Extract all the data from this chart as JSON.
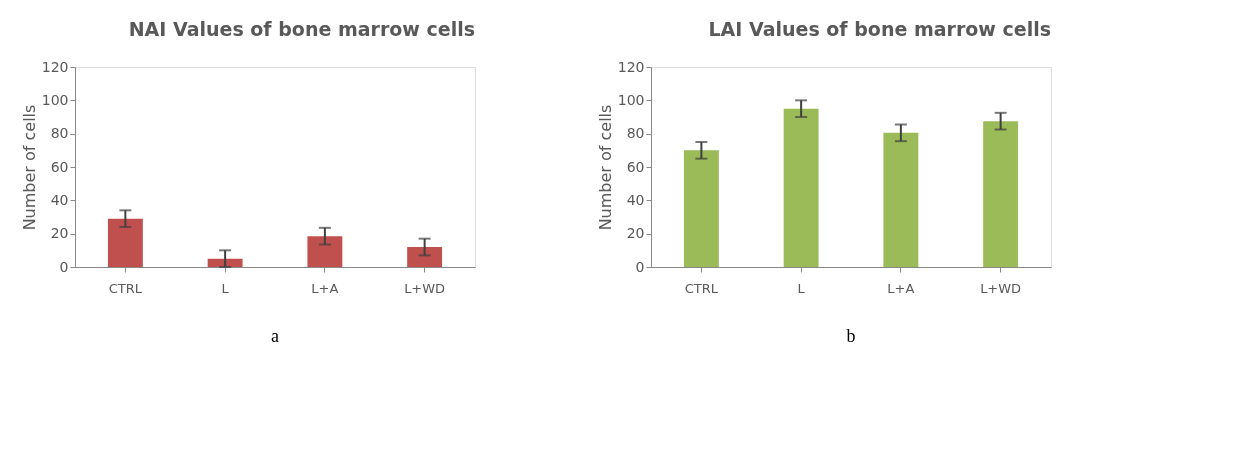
{
  "chart_data": [
    {
      "type": "bar",
      "title": "NAI Values of bone marrow cells",
      "ylabel": "Number of cells",
      "categories": [
        "CTRL",
        "L",
        "L+A",
        "L+WD"
      ],
      "values": [
        29,
        5,
        18.5,
        12
      ],
      "errors": [
        5,
        5,
        5,
        5
      ],
      "color": "#c0504d",
      "ylim": [
        0,
        120
      ],
      "yticks": [
        0,
        20,
        40,
        60,
        80,
        100,
        120
      ],
      "grid": false,
      "annotations": [
        "a"
      ]
    },
    {
      "type": "bar",
      "title": "LAI Values of bone marrow cells",
      "ylabel": "Number of cells",
      "categories": [
        "CTRL",
        "L",
        "L+A",
        "L+WD"
      ],
      "values": [
        70,
        95,
        80.5,
        87.5
      ],
      "errors": [
        5,
        5,
        5,
        5
      ],
      "color": "#9bbb59",
      "ylim": [
        0,
        120
      ],
      "yticks": [
        0,
        20,
        40,
        60,
        80,
        100,
        120
      ],
      "grid": false,
      "annotations": [
        "b"
      ]
    }
  ]
}
